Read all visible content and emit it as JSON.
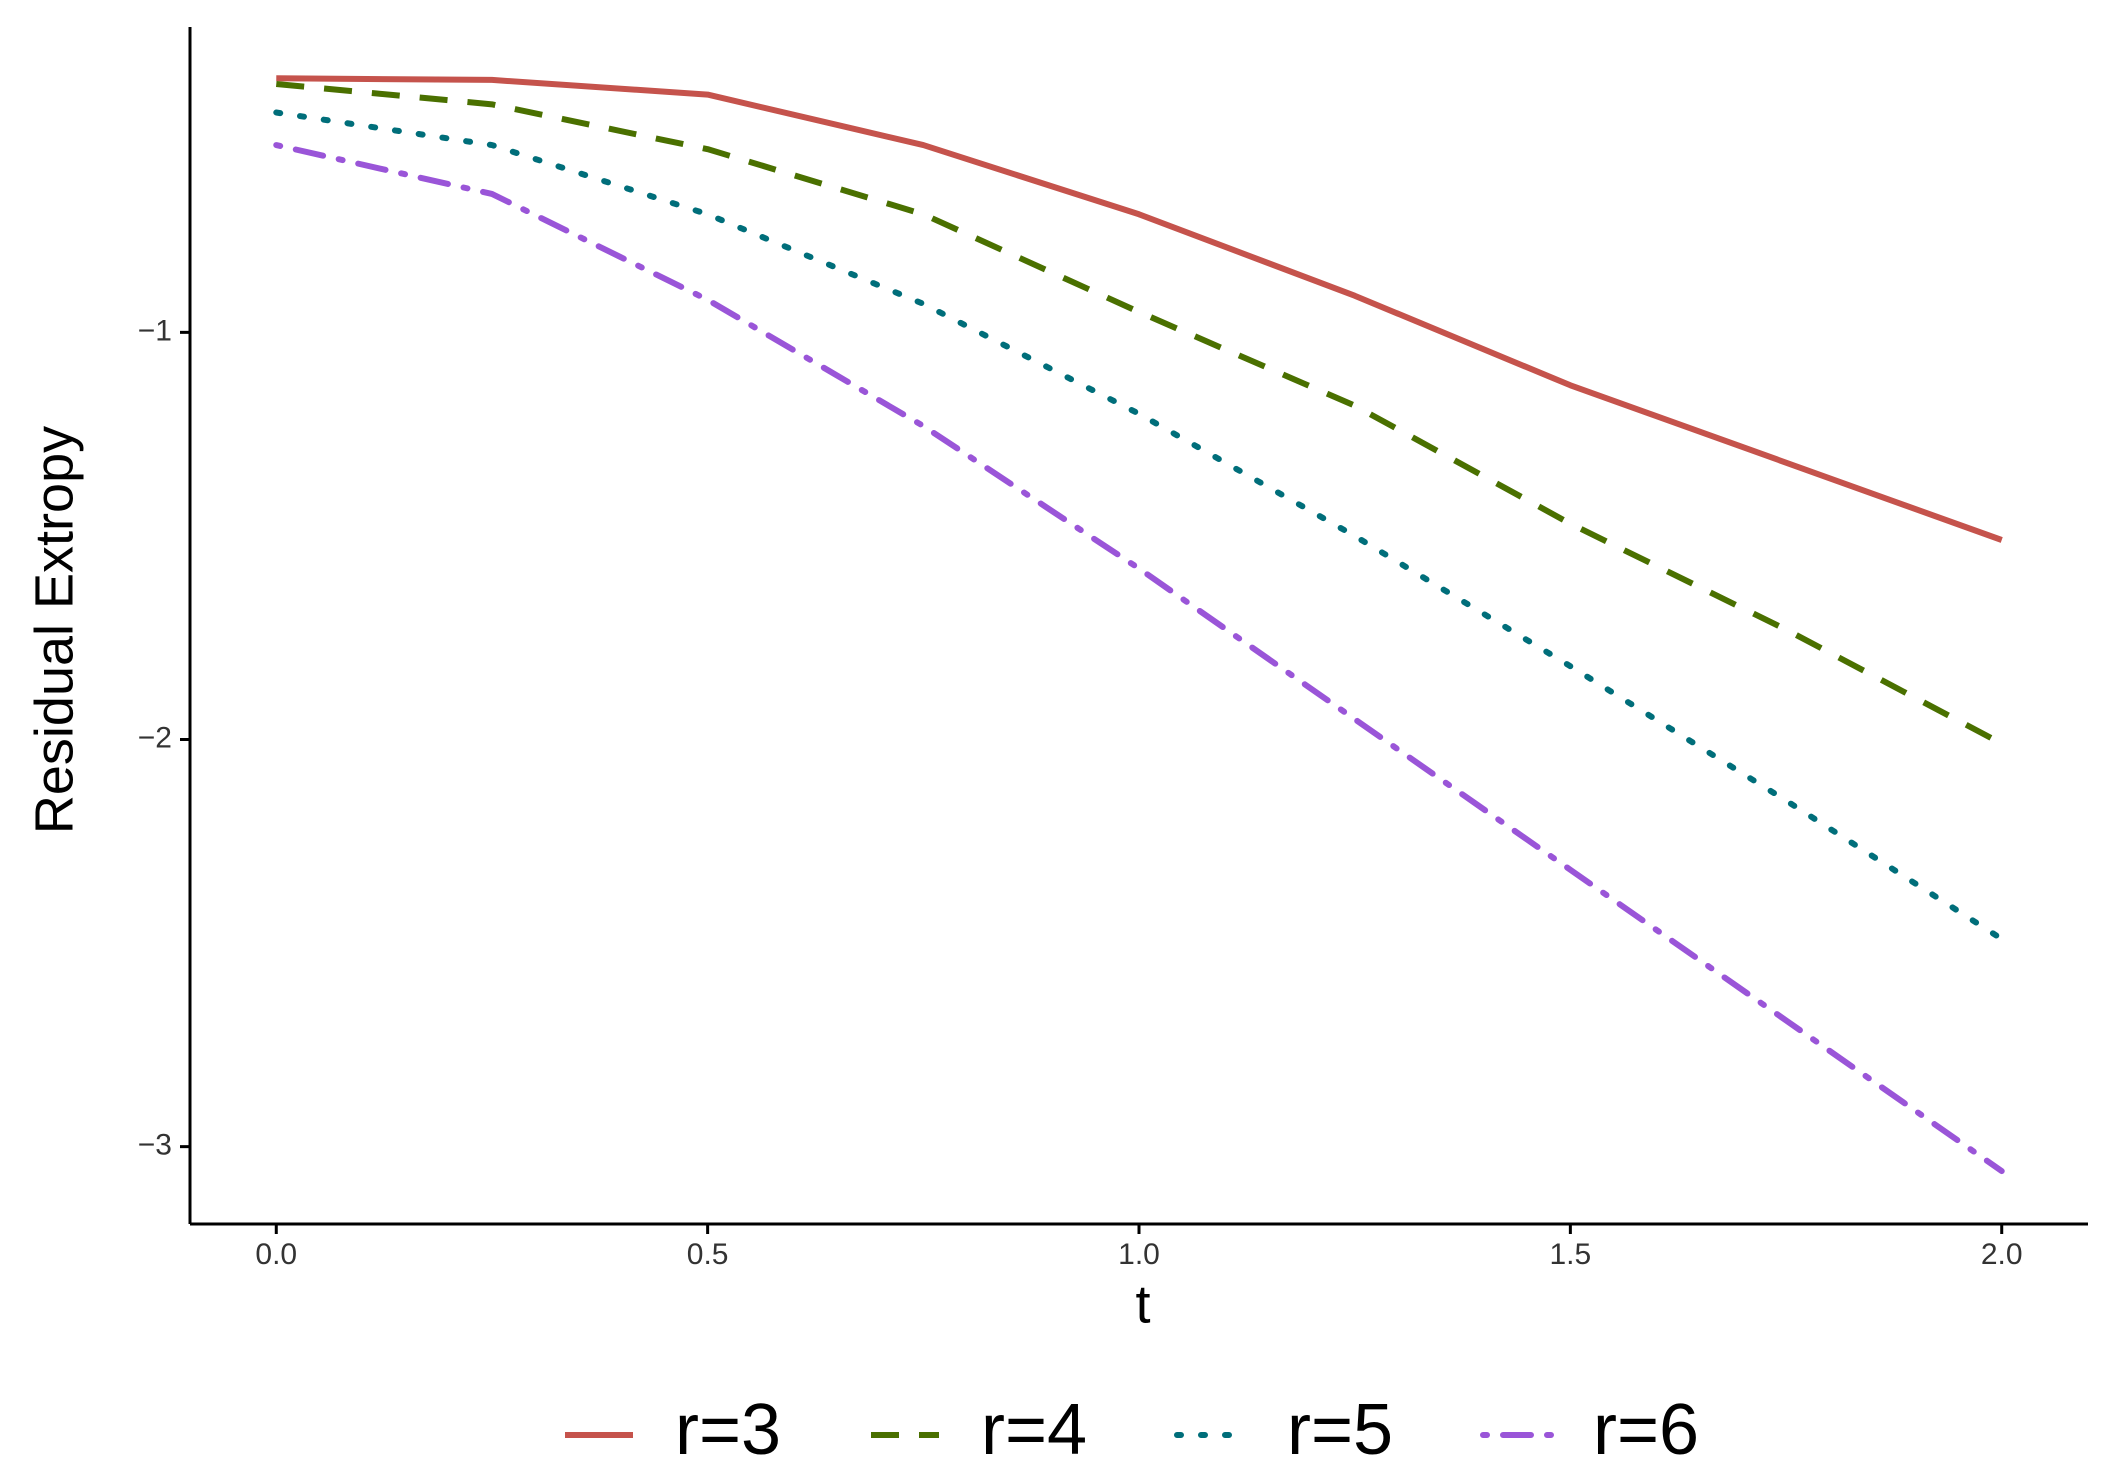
{
  "chart_data": {
    "type": "line",
    "x_label": "t",
    "y_label": "Residual Extropy",
    "x": [
      0,
      0.25,
      0.5,
      0.75,
      1.0,
      1.25,
      1.5,
      1.75,
      2.0
    ],
    "series": [
      {
        "name": "r=3",
        "color": "#c5534c",
        "linetype": "solid",
        "values": [
          -0.376,
          -0.38,
          -0.416,
          -0.54,
          -0.71,
          -0.91,
          -1.13,
          -1.32,
          -1.51
        ]
      },
      {
        "name": "r=4",
        "color": "#4a7000",
        "linetype": "dashed",
        "values": [
          -0.39,
          -0.44,
          -0.55,
          -0.71,
          -0.95,
          -1.18,
          -1.47,
          -1.73,
          -2.01
        ]
      },
      {
        "name": "r=5",
        "color": "#006e7a",
        "linetype": "dotted",
        "values": [
          -0.46,
          -0.54,
          -0.71,
          -0.93,
          -1.2,
          -1.5,
          -1.82,
          -2.15,
          -2.49
        ]
      },
      {
        "name": "r=6",
        "color": "#9a55d8",
        "linetype": "dotdash",
        "values": [
          -0.54,
          -0.66,
          -0.92,
          -1.23,
          -1.58,
          -1.95,
          -2.32,
          -2.69,
          -3.06
        ]
      }
    ],
    "xlim": [
      -0.1,
      2.1
    ],
    "ylim": [
      -3.19,
      -0.25
    ],
    "xticks": [
      {
        "value": 0,
        "label": "0.0"
      },
      {
        "value": 0.5,
        "label": "0.5"
      },
      {
        "value": 1,
        "label": "1.0"
      },
      {
        "value": 1.5,
        "label": "1.5"
      },
      {
        "value": 2,
        "label": "2.0"
      }
    ],
    "yticks": [
      {
        "value": -1,
        "label": "−1"
      },
      {
        "value": -2,
        "label": "−2"
      },
      {
        "value": -3,
        "label": "−3"
      }
    ],
    "grid": false,
    "legend": "bottom"
  }
}
